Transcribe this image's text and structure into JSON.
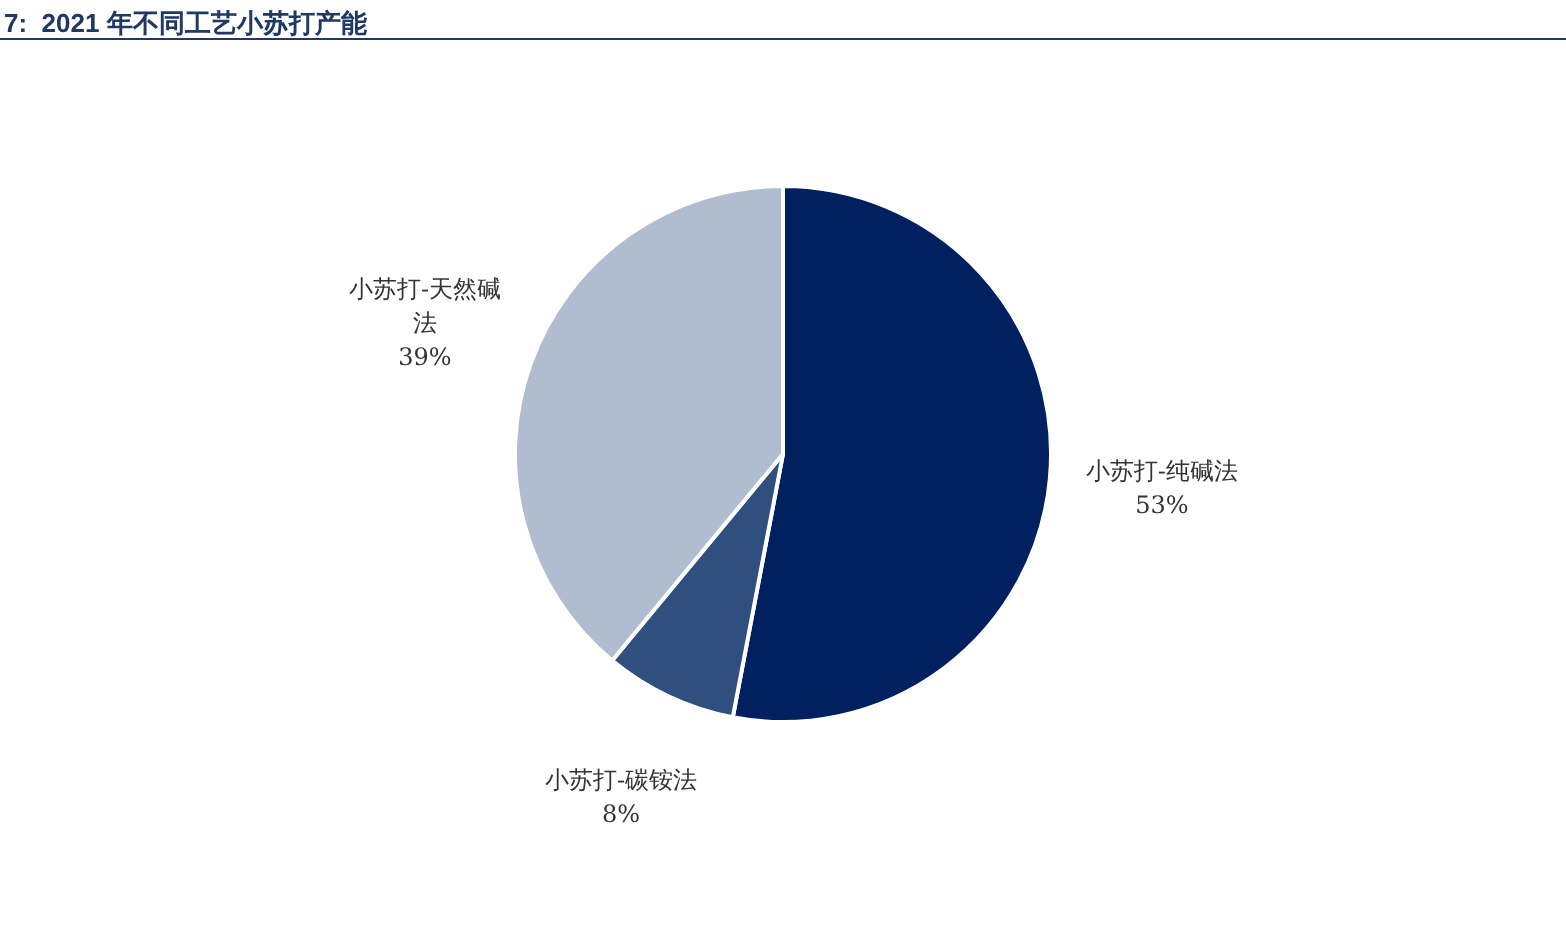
{
  "chart_data": {
    "type": "pie",
    "title": "7:  2021 年不同工艺小苏打产能",
    "categories": [
      "小苏打-纯碱法",
      "小苏打-碳铵法",
      "小苏打-天然碱法"
    ],
    "values": [
      53,
      8,
      39
    ],
    "value_labels": [
      "53%",
      "8%",
      "39%"
    ],
    "colors": [
      "#002060",
      "#2f4f7f",
      "#b0bccf"
    ],
    "legend": false
  }
}
